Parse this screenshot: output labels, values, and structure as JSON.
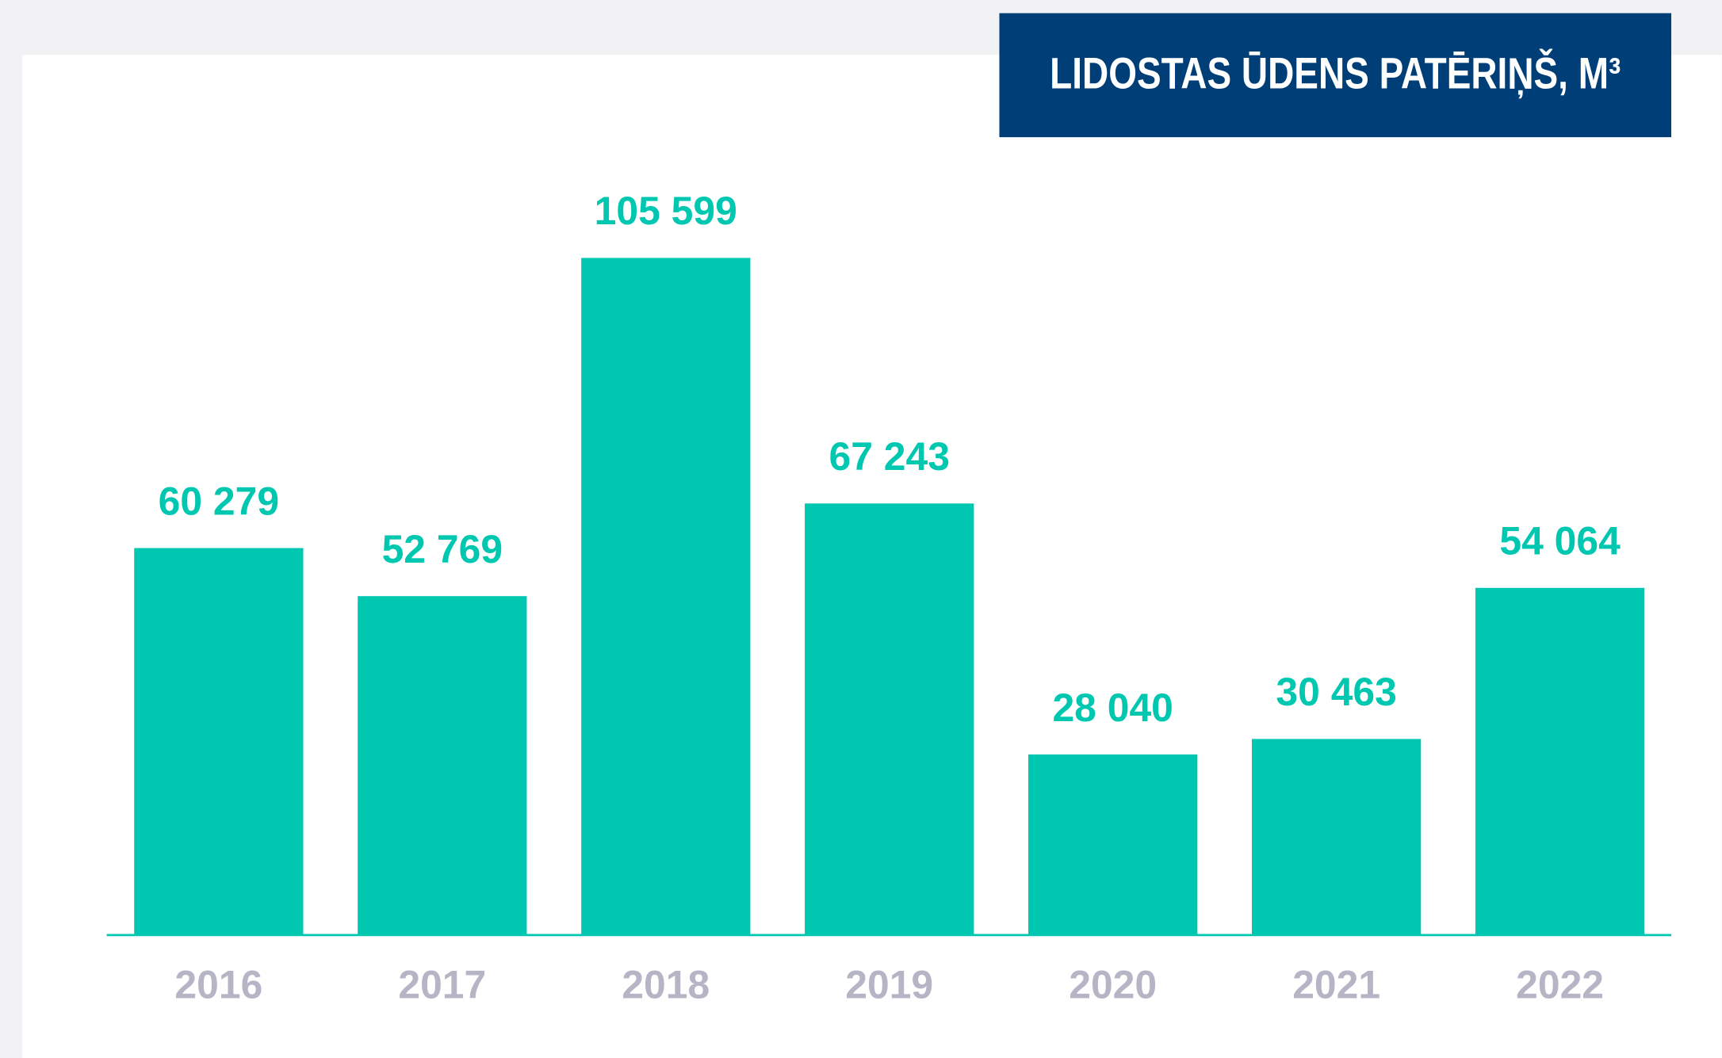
{
  "chart_data": {
    "type": "bar",
    "title": "LIDOSTAS ŪDENS PATĒRIŅŠ, M³",
    "categories": [
      "2016",
      "2017",
      "2018",
      "2019",
      "2020",
      "2021",
      "2022"
    ],
    "values": [
      60279,
      52769,
      105599,
      67243,
      28040,
      30463,
      54064
    ],
    "value_labels": [
      "60 279",
      "52 769",
      "105 599",
      "67 243",
      "28 040",
      "30 463",
      "54 064"
    ],
    "color": "#00c8b0"
  }
}
